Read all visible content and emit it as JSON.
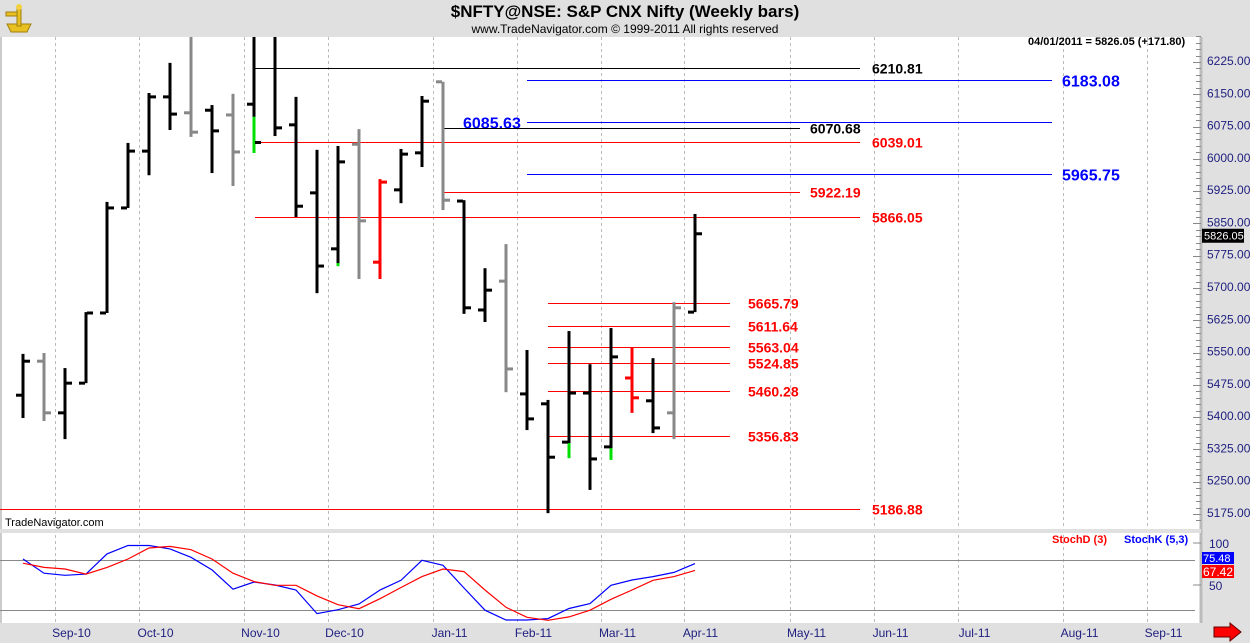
{
  "header": {
    "title": "$NFTY@NSE:  S&P CNX Nifty  (Weekly bars)",
    "subtitle": "www.TradeNavigator.com © 1999-2011 All rights reserved",
    "info": "04/01/2011 = 5826.05 (+171.80)",
    "logo_icon": "sextant-icon"
  },
  "watermark": "TradeNavigator.com",
  "chart_data": [
    {
      "type": "ohlc",
      "title": "$NFTY@NSE:  S&P CNX Nifty  (Weekly bars)",
      "ylim": [
        5140,
        6290
      ],
      "y_ticks": [
        "6225.00",
        "6150.00",
        "6075.00",
        "6000.00",
        "5925.00",
        "5850.00",
        "5775.00",
        "5700.00",
        "5625.00",
        "5550.00",
        "5475.00",
        "5400.00",
        "5325.00",
        "5250.00",
        "5175.00"
      ],
      "x_ticks": [
        "Sep-10",
        "Oct-10",
        "Nov-10",
        "Dec-10",
        "Jan-11",
        "Feb-11",
        "Mar-11",
        "Apr-11",
        "May-11",
        "Jun-11",
        "Jul-11",
        "Aug-11",
        "Sep-11"
      ],
      "last_price_tag": "5826.05",
      "colors": {
        "black": "#000000",
        "gray": "#888888",
        "red": "#ff0000",
        "green": "#00e000"
      },
      "bars": [
        {
          "o": 5451,
          "h": 5547,
          "l": 5398,
          "c": 5530,
          "color": "black"
        },
        {
          "o": 5530,
          "h": 5549,
          "l": 5391,
          "c": 5410,
          "color": "gray"
        },
        {
          "o": 5410,
          "h": 5514,
          "l": 5349,
          "c": 5479,
          "color": "black"
        },
        {
          "o": 5479,
          "h": 5644,
          "l": 5479,
          "c": 5642,
          "color": "black"
        },
        {
          "o": 5642,
          "h": 5900,
          "l": 5642,
          "c": 5886,
          "color": "black"
        },
        {
          "o": 5886,
          "h": 6037,
          "l": 5886,
          "c": 6018,
          "color": "black"
        },
        {
          "o": 6018,
          "h": 6153,
          "l": 5962,
          "c": 6144,
          "color": "black"
        },
        {
          "o": 6144,
          "h": 6223,
          "l": 6067,
          "c": 6104,
          "color": "black"
        },
        {
          "o": 6107,
          "h": 6300,
          "l": 6051,
          "c": 6062,
          "color": "gray"
        },
        {
          "o": 6113,
          "h": 6125,
          "l": 5967,
          "c": 6065,
          "color": "black"
        },
        {
          "o": 6102,
          "h": 6151,
          "l": 5937,
          "c": 6016,
          "color": "gray"
        },
        {
          "o": 6127,
          "h": 6300,
          "l": 6016,
          "c": 6038,
          "color": "black",
          "green": [
            6016,
            6098
          ]
        },
        {
          "o": 6285,
          "h": 6300,
          "l": 6053,
          "c": 6072,
          "color": "black"
        },
        {
          "o": 6079,
          "h": 6144,
          "l": 5865,
          "c": 5890,
          "color": "black"
        },
        {
          "o": 5921,
          "h": 6021,
          "l": 5688,
          "c": 5751,
          "color": "black"
        },
        {
          "o": 5791,
          "h": 6030,
          "l": 5753,
          "c": 5993,
          "color": "black",
          "green": [
            5753,
            5758
          ]
        },
        {
          "o": 6034,
          "h": 6069,
          "l": 5721,
          "c": 5856,
          "color": "gray"
        },
        {
          "o": 5760,
          "h": 5953,
          "l": 5721,
          "c": 5946,
          "color": "red"
        },
        {
          "o": 5928,
          "h": 6023,
          "l": 5897,
          "c": 6011,
          "color": "black"
        },
        {
          "o": 6014,
          "h": 6146,
          "l": 5981,
          "c": 6134,
          "color": "black"
        },
        {
          "o": 6179,
          "h": 6179,
          "l": 5881,
          "c": 5904,
          "color": "gray"
        },
        {
          "o": 5902,
          "h": 5904,
          "l": 5640,
          "c": 5654,
          "color": "black"
        },
        {
          "o": 5649,
          "h": 5746,
          "l": 5621,
          "c": 5695,
          "color": "black"
        },
        {
          "o": 5716,
          "h": 5802,
          "l": 5458,
          "c": 5512,
          "color": "gray"
        },
        {
          "o": 5454,
          "h": 5556,
          "l": 5370,
          "c": 5396,
          "color": "black"
        },
        {
          "o": 5431,
          "h": 5440,
          "l": 5177,
          "c": 5307,
          "color": "black"
        },
        {
          "o": 5342,
          "h": 5600,
          "l": 5307,
          "c": 5456,
          "color": "black",
          "green": [
            5307,
            5340
          ]
        },
        {
          "o": 5456,
          "h": 5523,
          "l": 5231,
          "c": 5303,
          "color": "black"
        },
        {
          "o": 5331,
          "h": 5607,
          "l": 5303,
          "c": 5540,
          "color": "black",
          "green": [
            5303,
            5328
          ]
        },
        {
          "o": 5491,
          "h": 5561,
          "l": 5410,
          "c": 5445,
          "color": "red"
        },
        {
          "o": 5438,
          "h": 5537,
          "l": 5363,
          "c": 5375,
          "color": "black"
        },
        {
          "o": 5410,
          "h": 5667,
          "l": 5349,
          "c": 5654,
          "color": "gray"
        },
        {
          "o": 5644,
          "h": 5872,
          "l": 5644,
          "c": 5826,
          "color": "black"
        }
      ],
      "levels": [
        {
          "label": "6210.81",
          "value": 6210.81,
          "color": "#000000"
        },
        {
          "label": "6183.08",
          "value": 6183.08,
          "color": "#0000ff"
        },
        {
          "label": "6085.63",
          "value": 6085.63,
          "color": "#0000ff"
        },
        {
          "label": "6070.68",
          "value": 6070.68,
          "color": "#000000"
        },
        {
          "label": "6039.01",
          "value": 6039.01,
          "color": "#ff0000"
        },
        {
          "label": "5965.75",
          "value": 5965.75,
          "color": "#0000ff"
        },
        {
          "label": "5922.19",
          "value": 5922.19,
          "color": "#ff0000"
        },
        {
          "label": "5866.05",
          "value": 5866.05,
          "color": "#ff0000"
        },
        {
          "label": "5665.79",
          "value": 5665.79,
          "color": "#ff0000"
        },
        {
          "label": "5611.64",
          "value": 5611.64,
          "color": "#ff0000"
        },
        {
          "label": "5563.04",
          "value": 5563.04,
          "color": "#ff0000"
        },
        {
          "label": "5524.85",
          "value": 5524.85,
          "color": "#ff0000"
        },
        {
          "label": "5460.28",
          "value": 5460.28,
          "color": "#ff0000"
        },
        {
          "label": "5356.83",
          "value": 5356.83,
          "color": "#ff0000"
        },
        {
          "label": "5186.88",
          "value": 5186.88,
          "color": "#ff0000"
        }
      ]
    },
    {
      "type": "line",
      "ylim": [
        0,
        100
      ],
      "y_ticks": [
        "100",
        "50"
      ],
      "reference_lines": [
        80,
        20
      ],
      "series": [
        {
          "name": "StochD (3)",
          "color": "#ff0000",
          "value_tag": "67.42",
          "values": [
            76,
            71,
            69,
            63,
            71,
            81,
            94,
            96,
            92,
            81,
            64,
            54,
            49.6,
            49.6,
            37,
            26.6,
            21.8,
            33.7,
            47,
            60,
            69,
            66,
            44,
            23.4,
            11.5,
            8,
            12,
            20,
            33,
            44,
            55.6,
            60,
            67.42
          ]
        },
        {
          "name": "StochK (5,3)",
          "color": "#0000ff",
          "value_tag": "75.48",
          "values": [
            81,
            64,
            61.5,
            63,
            87,
            97,
            97,
            93,
            83,
            68,
            45,
            53.6,
            50,
            44,
            16,
            20.6,
            27.4,
            44,
            55.6,
            79.4,
            73.4,
            46.4,
            20,
            8.3,
            8.3,
            10,
            22,
            27.8,
            49.6,
            56,
            60,
            65,
            75.48
          ]
        }
      ]
    }
  ],
  "scroll_right_icon": "red-arrow-right-icon"
}
